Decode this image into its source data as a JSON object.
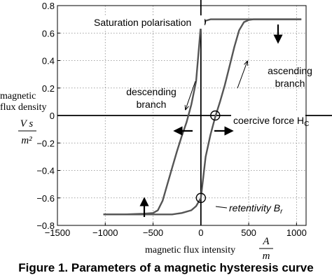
{
  "caption": "Figure 1. Parameters of a magnetic hysteresis curve",
  "chart_data": {
    "type": "line",
    "title": "",
    "xlabel": "magnetic flux intensity",
    "xunit": {
      "numerator": "A",
      "denominator": "m"
    },
    "ylabel_lines": [
      "magnetic",
      "flux density"
    ],
    "yunit": {
      "numerator": "V s",
      "denominator": "m²"
    },
    "xlim": [
      -1500,
      1100
    ],
    "ylim": [
      -0.8,
      0.8
    ],
    "xticks": [
      -1500,
      -1000,
      -500,
      0,
      500,
      1000
    ],
    "xtick_labels": [
      "−1500",
      "−1000",
      "−500",
      "0",
      "500",
      "1000"
    ],
    "yticks": [
      -0.8,
      -0.6,
      -0.4,
      -0.2,
      0,
      0.2,
      0.4,
      0.6,
      0.8
    ],
    "ytick_labels": [
      "−0.8",
      "−0.6",
      "−0.4",
      "−0.2",
      "0",
      "0.2",
      "0.4",
      "0.6",
      "0.8"
    ],
    "grid": true,
    "series": [
      {
        "color": "#555555",
        "x": [
          -1020,
          -800,
          -600,
          -500,
          -450,
          -400,
          -350,
          -300,
          -250,
          -200,
          -150,
          -100,
          -50,
          0,
          50,
          100,
          150,
          200,
          250,
          300,
          350,
          400,
          450,
          500,
          600,
          800,
          1050
        ],
        "y": [
          -0.72,
          -0.72,
          -0.715,
          -0.71,
          -0.69,
          -0.62,
          -0.5,
          -0.38,
          -0.26,
          -0.15,
          -0.05,
          0.08,
          0.25,
          0.66,
          0.69,
          0.7,
          0.7,
          0.7,
          0.7,
          0.7,
          0.7,
          0.7,
          0.7,
          0.7,
          0.7,
          0.7,
          0.7
        ]
      },
      {
        "color": "#555555",
        "x": [
          -1020,
          -800,
          -600,
          -500,
          -400,
          -300,
          -200,
          -100,
          -50,
          0,
          50,
          100,
          150,
          200,
          250,
          300,
          350,
          400,
          450,
          500,
          550,
          600,
          800,
          1050
        ],
        "y": [
          -0.72,
          -0.72,
          -0.72,
          -0.72,
          -0.72,
          -0.72,
          -0.71,
          -0.69,
          -0.66,
          -0.6,
          -0.3,
          -0.14,
          -0.01,
          0.1,
          0.22,
          0.36,
          0.5,
          0.62,
          0.68,
          0.695,
          0.7,
          0.7,
          0.7,
          0.7
        ]
      }
    ],
    "markers": [
      {
        "name": "saturation",
        "x": 0,
        "y": 0.68
      },
      {
        "name": "coercive",
        "x": 150,
        "y": 0
      },
      {
        "name": "retentivity",
        "x": 0,
        "y": -0.6
      }
    ],
    "annotations": {
      "saturation": "Saturation polarisation",
      "ascending": [
        "ascending",
        "branch"
      ],
      "descending": [
        "descending",
        "branch"
      ],
      "coercive": "coercive force H",
      "coercive_sub": "C",
      "retentivity": "retentivity B",
      "retentivity_sub": "r"
    }
  }
}
